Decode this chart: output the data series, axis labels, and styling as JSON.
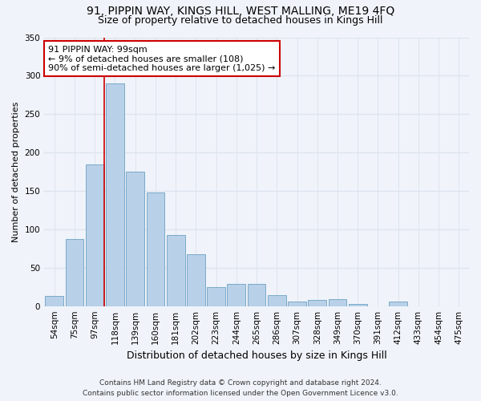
{
  "title1": "91, PIPPIN WAY, KINGS HILL, WEST MALLING, ME19 4FQ",
  "title2": "Size of property relative to detached houses in Kings Hill",
  "xlabel": "Distribution of detached houses by size in Kings Hill",
  "ylabel": "Number of detached properties",
  "categories": [
    "54sqm",
    "75sqm",
    "97sqm",
    "118sqm",
    "139sqm",
    "160sqm",
    "181sqm",
    "202sqm",
    "223sqm",
    "244sqm",
    "265sqm",
    "286sqm",
    "307sqm",
    "328sqm",
    "349sqm",
    "370sqm",
    "391sqm",
    "412sqm",
    "433sqm",
    "454sqm",
    "475sqm"
  ],
  "values": [
    13,
    87,
    185,
    290,
    175,
    148,
    93,
    68,
    25,
    29,
    29,
    14,
    6,
    8,
    9,
    3,
    0,
    6,
    0,
    0,
    0
  ],
  "bar_color": "#b8d0e8",
  "bar_edge_color": "#7aaac8",
  "annotation_line1": "91 PIPPIN WAY: 99sqm",
  "annotation_line2": "← 9% of detached houses are smaller (108)",
  "annotation_line3": "90% of semi-detached houses are larger (1,025) →",
  "annotation_box_facecolor": "#ffffff",
  "annotation_box_edgecolor": "#cc0000",
  "red_line_color": "#cc0000",
  "ylim": [
    0,
    350
  ],
  "yticks": [
    0,
    50,
    100,
    150,
    200,
    250,
    300,
    350
  ],
  "footer": "Contains HM Land Registry data © Crown copyright and database right 2024.\nContains public sector information licensed under the Open Government Licence v3.0.",
  "bg_color": "#f0f4fa",
  "plot_bg_color": "#f0f4fa",
  "grid_color": "#dde4ee",
  "title1_fontsize": 10,
  "title2_fontsize": 9,
  "ylabel_fontsize": 8,
  "xlabel_fontsize": 9,
  "tick_fontsize": 7.5,
  "footer_fontsize": 6.5
}
